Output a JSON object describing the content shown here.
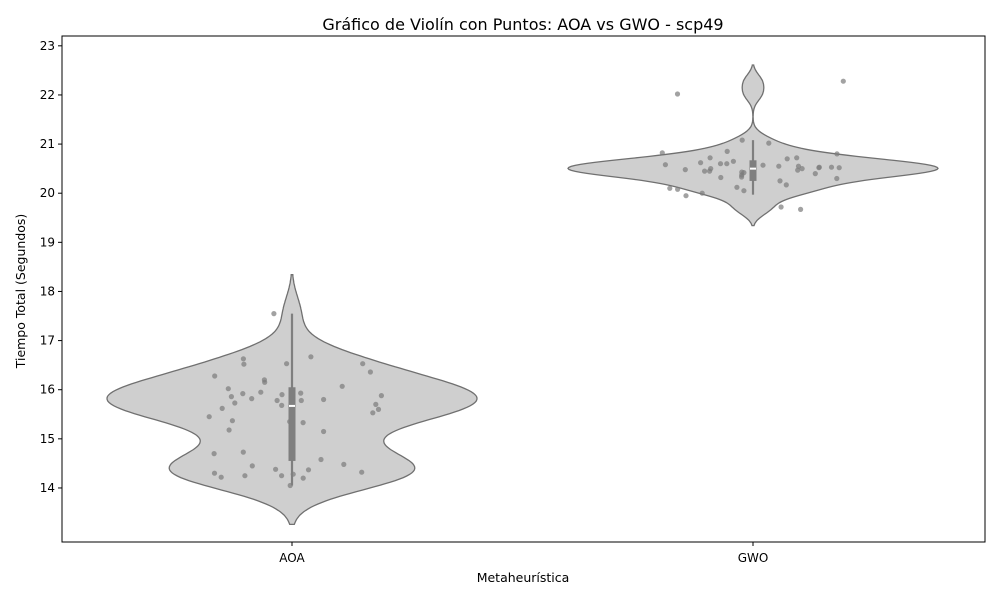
{
  "chart_data": {
    "type": "violin",
    "title": "Gráfico de Violín con Puntos: AOA vs GWO - scp49",
    "xlabel": "Metaheurística",
    "ylabel": "Tiempo Total (Segundos)",
    "categories": [
      "AOA",
      "GWO"
    ],
    "ylim": [
      12.9,
      23.2
    ],
    "yticks": [
      14,
      15,
      16,
      17,
      18,
      19,
      20,
      21,
      22,
      23
    ],
    "grid": false,
    "violin_color": "#cfcfcf",
    "edge_color": "#707070",
    "point_color": "#7a7a7a",
    "series": [
      {
        "category": "AOA",
        "median": 15.67,
        "q1": 14.55,
        "q3": 16.05,
        "whisker_low": 14.05,
        "whisker_high": 17.55,
        "points": [
          14.05,
          14.2,
          14.22,
          14.25,
          14.25,
          14.28,
          14.3,
          14.32,
          14.37,
          14.38,
          14.45,
          14.48,
          14.58,
          14.7,
          14.72,
          14.73,
          15.15,
          15.18,
          15.33,
          15.35,
          15.37,
          15.45,
          15.53,
          15.6,
          15.62,
          15.68,
          15.7,
          15.73,
          15.78,
          15.78,
          15.8,
          15.82,
          15.86,
          15.88,
          15.9,
          15.92,
          15.93,
          15.95,
          16.02,
          16.07,
          16.15,
          16.2,
          16.28,
          16.36,
          16.52,
          16.53,
          16.53,
          16.63,
          16.67,
          17.55
        ]
      },
      {
        "category": "GWO",
        "median": 20.5,
        "q1": 20.25,
        "q3": 20.67,
        "whisker_low": 19.97,
        "whisker_high": 21.08,
        "points": [
          19.67,
          19.72,
          19.95,
          20.0,
          20.05,
          20.08,
          20.1,
          20.12,
          20.17,
          20.25,
          20.3,
          20.32,
          20.33,
          20.35,
          20.37,
          20.4,
          20.42,
          20.43,
          20.45,
          20.45,
          20.47,
          20.48,
          20.5,
          20.5,
          20.52,
          20.52,
          20.53,
          20.53,
          20.55,
          20.55,
          20.57,
          20.58,
          20.6,
          20.6,
          20.62,
          20.65,
          20.7,
          20.72,
          20.72,
          20.8,
          20.82,
          20.85,
          21.02,
          21.08,
          22.02,
          22.28
        ]
      }
    ]
  }
}
